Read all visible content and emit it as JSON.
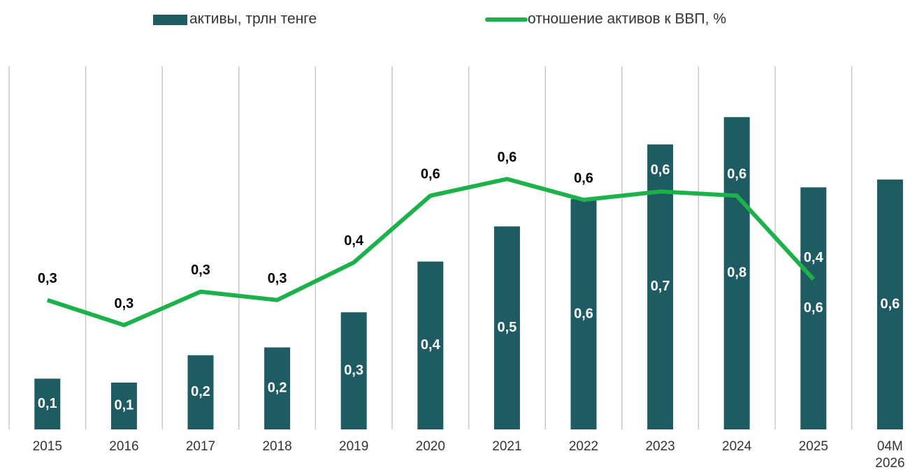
{
  "chart_data": {
    "type": "bar_line",
    "categories": [
      "2015",
      "2016",
      "2017",
      "2018",
      "2019",
      "2020",
      "2021",
      "2022",
      "2023",
      "2024",
      "2025",
      "04M 2026"
    ],
    "series": [
      {
        "name": "активы, трлн тенге",
        "type": "bar",
        "color": "#1f5b63",
        "values": [
          0.13,
          0.12,
          0.19,
          0.21,
          0.3,
          0.43,
          0.52,
          0.59,
          0.73,
          0.8,
          0.62,
          0.64
        ],
        "value_labels": [
          "0,1",
          "0,1",
          "0,2",
          "0,2",
          "0,3",
          "0,4",
          "0,5",
          "0,6",
          "0,7",
          "0,8",
          "0,6",
          "0,6"
        ]
      },
      {
        "name": "отношение активов к ВВП, %",
        "type": "line",
        "axis": "y2",
        "color": "#1db14b",
        "values": [
          0.33,
          0.27,
          0.35,
          0.33,
          0.42,
          0.58,
          0.62,
          0.57,
          0.59,
          0.58,
          0.38,
          null
        ],
        "value_labels": [
          "0,3",
          "0,3",
          "0,3",
          "0,3",
          "0,4",
          "0,6",
          "0,6",
          "0,6",
          "0,6",
          "0,6",
          "0,4",
          null
        ]
      }
    ],
    "ylim": [
      0,
      0.93
    ],
    "y2lim": [
      0.02,
      0.89
    ]
  }
}
